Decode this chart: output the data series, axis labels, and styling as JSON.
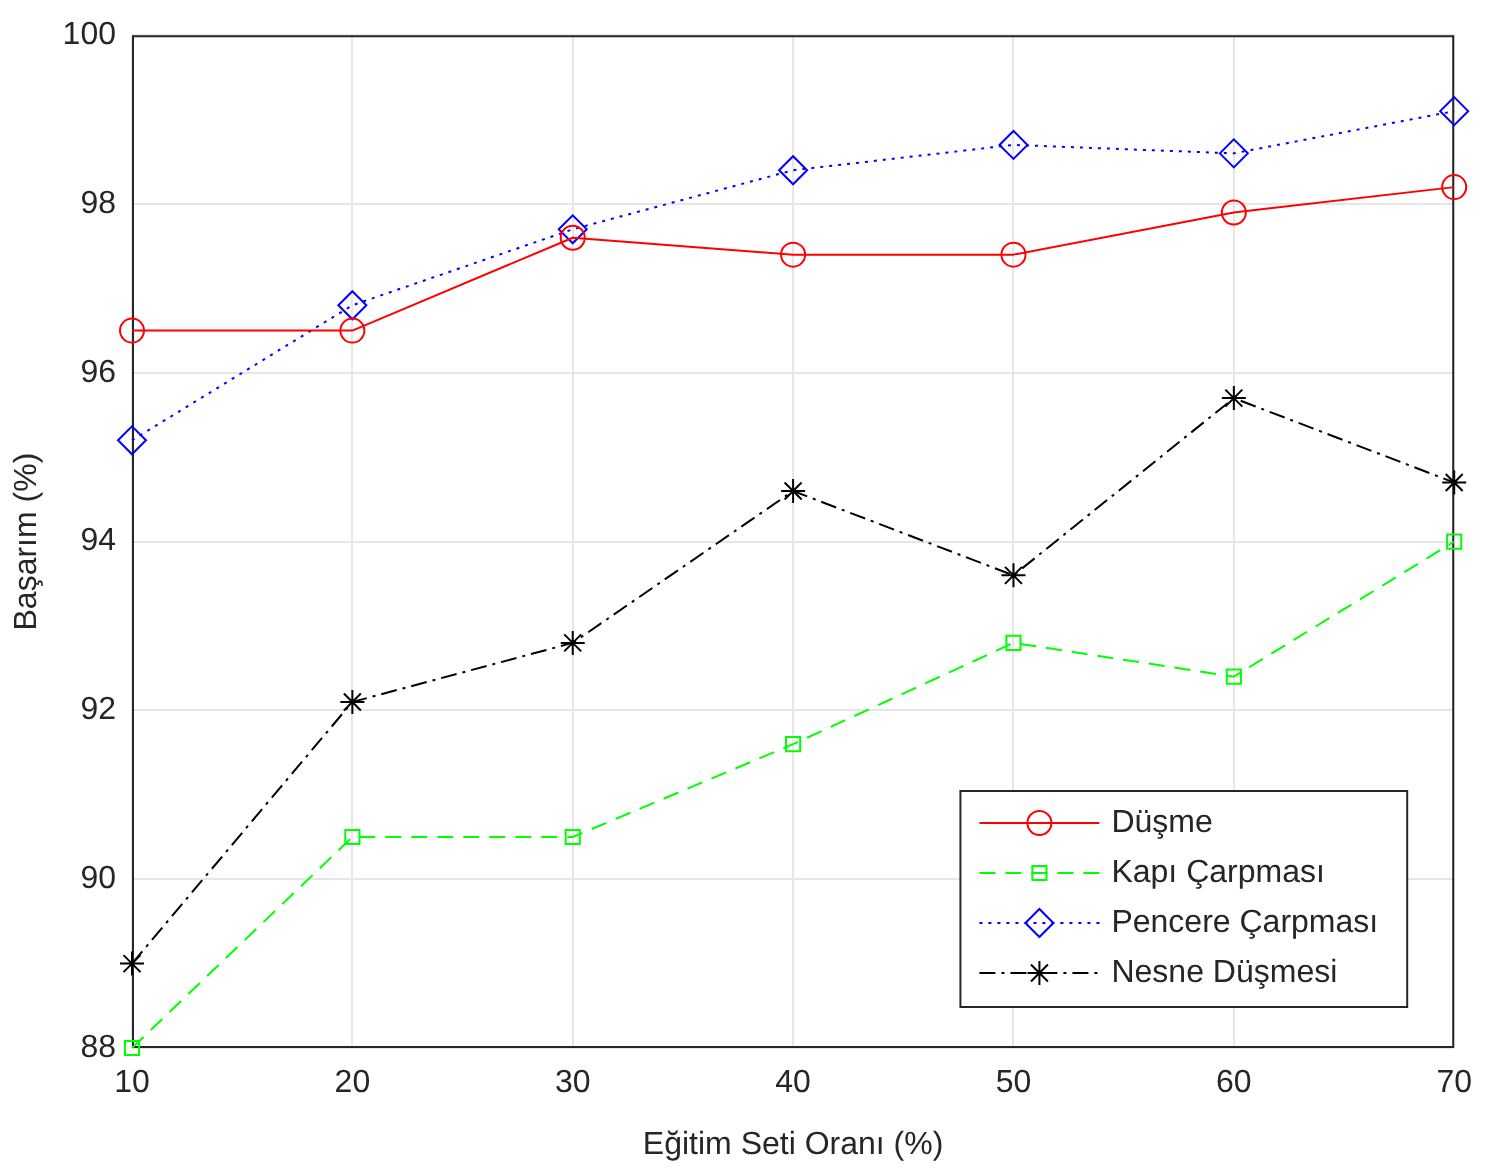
{
  "chart_data": {
    "type": "line",
    "xlabel": "Eğitim Seti Oranı (%)",
    "ylabel": "Başarım (%)",
    "x": [
      10,
      20,
      30,
      40,
      50,
      60,
      70
    ],
    "series": [
      {
        "name": "Düşme",
        "color": "#ff0000",
        "marker": "circle",
        "line_style": "solid",
        "values": [
          96.5,
          96.5,
          97.6,
          97.4,
          97.4,
          97.9,
          98.2
        ]
      },
      {
        "name": "Kapı Çarpması",
        "color": "#00ff00",
        "marker": "square",
        "line_style": "dashed",
        "values": [
          88.0,
          90.5,
          90.5,
          91.6,
          92.8,
          92.4,
          94.0
        ]
      },
      {
        "name": "Pencere Çarpması",
        "color": "#0000ff",
        "marker": "diamond",
        "line_style": "dotted",
        "values": [
          95.2,
          96.8,
          97.7,
          98.4,
          98.7,
          98.6,
          99.1
        ]
      },
      {
        "name": "Nesne Düşmesi",
        "color": "#000000",
        "marker": "cross",
        "line_style": "dashdot",
        "values": [
          89.0,
          92.1,
          92.8,
          94.6,
          93.6,
          95.7,
          94.7
        ]
      }
    ],
    "xlim": [
      10,
      70
    ],
    "xticks": [
      10,
      20,
      30,
      40,
      50,
      60,
      70
    ],
    "ylim": [
      88,
      100
    ],
    "yticks": [
      88,
      90,
      92,
      94,
      96,
      98,
      100
    ],
    "grid": true,
    "legend": "bottom right"
  }
}
